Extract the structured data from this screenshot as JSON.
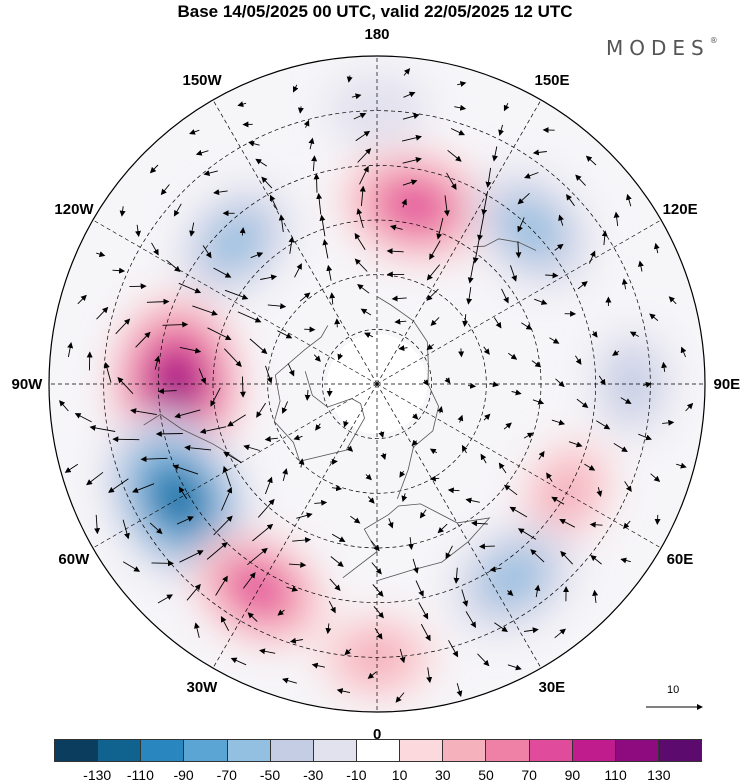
{
  "title": "Base 14/05/2025 00 UTC, valid 22/05/2025 12 UTC",
  "logo": "MODES",
  "logo_mark": "®",
  "longitude_labels": [
    {
      "text": "180",
      "lon": 180
    },
    {
      "text": "150E",
      "lon": 150
    },
    {
      "text": "120E",
      "lon": 120
    },
    {
      "text": "90E",
      "lon": 90
    },
    {
      "text": "60E",
      "lon": 60
    },
    {
      "text": "30E",
      "lon": 30
    },
    {
      "text": "0",
      "lon": 0
    },
    {
      "text": "30W",
      "lon": -30
    },
    {
      "text": "60W",
      "lon": -60
    },
    {
      "text": "90W",
      "lon": -90
    },
    {
      "text": "120W",
      "lon": -120
    },
    {
      "text": "150W",
      "lon": -150
    }
  ],
  "reference_vector_label": "10",
  "colorbar": {
    "colors": [
      "#0b3d5e",
      "#10628f",
      "#2a86bf",
      "#5aa5d3",
      "#93bfe0",
      "#c4cde4",
      "#e2e1ee",
      "#ffffff",
      "#fbd9dc",
      "#f5b1bc",
      "#ef80a6",
      "#e14b9c",
      "#c01c8e",
      "#8d0b7e",
      "#5c0a6e"
    ],
    "ticks": [
      "-130",
      "-110",
      "-90",
      "-70",
      "-50",
      "-30",
      "-10",
      "10",
      "30",
      "50",
      "70",
      "90",
      "110",
      "130"
    ]
  },
  "anomalies": [
    {
      "lon": -90,
      "lat": 35,
      "value": 110,
      "kind": "high"
    },
    {
      "lon": -60,
      "lat": 27,
      "value": -110,
      "kind": "low"
    },
    {
      "lon": -30,
      "lat": 25,
      "value": 70,
      "kind": "high"
    },
    {
      "lon": -135,
      "lat": 35,
      "value": -55,
      "kind": "low"
    },
    {
      "lon": 168,
      "lat": 40,
      "value": 80,
      "kind": "high"
    },
    {
      "lon": 135,
      "lat": 30,
      "value": -60,
      "kind": "low"
    },
    {
      "lon": 90,
      "lat": 20,
      "value": -30,
      "kind": "low"
    },
    {
      "lon": 60,
      "lat": 30,
      "value": 40,
      "kind": "high"
    },
    {
      "lon": 35,
      "lat": 25,
      "value": -60,
      "kind": "low"
    },
    {
      "lon": 0,
      "lat": 15,
      "value": 40,
      "kind": "high"
    },
    {
      "lon": 180,
      "lat": 15,
      "value": -20,
      "kind": "low"
    }
  ]
}
